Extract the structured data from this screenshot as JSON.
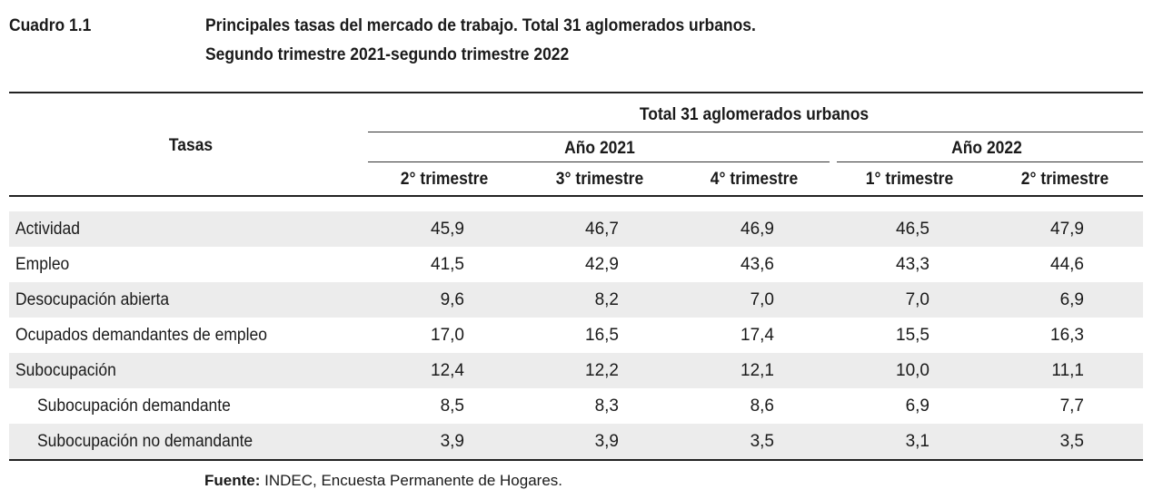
{
  "header": {
    "label": "Cuadro 1.1",
    "title_line1": "Principales tasas del mercado de trabajo. Total 31 aglomerados urbanos.",
    "title_line2": "Segundo trimestre 2021-segundo trimestre 2022"
  },
  "table": {
    "stub_header": "Tasas",
    "spanner": "Total 31 aglomerados urbanos",
    "year_groups": [
      "Año 2021",
      "Año 2022"
    ],
    "columns": [
      "2° trimestre",
      "3° trimestre",
      "4° trimestre",
      "1° trimestre",
      "2° trimestre"
    ],
    "rows": [
      {
        "label": "Actividad",
        "values": [
          "45,9",
          "46,7",
          "46,9",
          "46,5",
          "47,9"
        ]
      },
      {
        "label": "Empleo",
        "values": [
          "41,5",
          "42,9",
          "43,6",
          "43,3",
          "44,6"
        ]
      },
      {
        "label": "Desocupación abierta",
        "values": [
          "9,6",
          "8,2",
          "7,0",
          "7,0",
          "6,9"
        ]
      },
      {
        "label": "Ocupados demandantes de empleo",
        "values": [
          "17,0",
          "16,5",
          "17,4",
          "15,5",
          "16,3"
        ]
      },
      {
        "label": "Subocupación",
        "values": [
          "12,4",
          "12,2",
          "12,1",
          "10,0",
          "11,1"
        ]
      },
      {
        "label": "Subocupación demandante",
        "values": [
          "8,5",
          "8,3",
          "8,6",
          "6,9",
          "7,7"
        ]
      },
      {
        "label": "Subocupación no demandante",
        "values": [
          "3,9",
          "3,9",
          "3,5",
          "3,1",
          "3,5"
        ]
      }
    ]
  },
  "source": {
    "prefix": "Fuente:",
    "text": " INDEC, Encuesta Permanente de Hogares."
  }
}
